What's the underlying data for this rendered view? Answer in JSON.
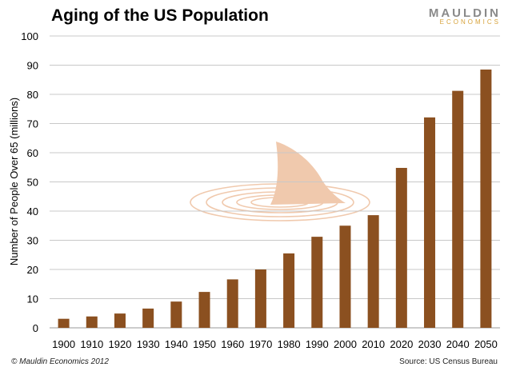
{
  "title": "Aging of the US Population",
  "logo": {
    "top": "MAULDIN",
    "bottom": "ECONOMICS"
  },
  "footer": {
    "copyright": "© Mauldin Economics 2012",
    "source": "Source: US Census Bureau"
  },
  "colors": {
    "bar": "#8b5020",
    "grid": "#c8c8c8",
    "watermark": "#f0c9ad"
  },
  "watermark_icon": "shark-fin-icon",
  "chart_data": {
    "type": "bar",
    "title": "Aging of the US Population",
    "xlabel": "",
    "ylabel": "Number of People Over 65  (millions)",
    "ylim": [
      0,
      100
    ],
    "yticks": [
      0,
      10,
      20,
      30,
      40,
      50,
      60,
      70,
      80,
      90,
      100
    ],
    "grid": true,
    "categories": [
      "1900",
      "1910",
      "1920",
      "1930",
      "1940",
      "1950",
      "1960",
      "1970",
      "1980",
      "1990",
      "2000",
      "2010",
      "2020",
      "2030",
      "2040",
      "2050"
    ],
    "values": [
      3.1,
      3.9,
      4.9,
      6.6,
      9.0,
      12.3,
      16.6,
      20.0,
      25.5,
      31.2,
      35.0,
      38.6,
      54.8,
      72.1,
      81.2,
      88.5
    ]
  }
}
